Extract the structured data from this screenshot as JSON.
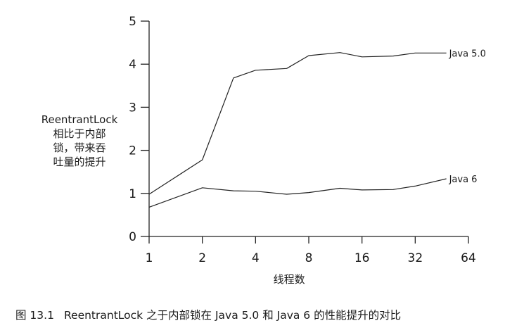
{
  "chart_data": {
    "type": "line",
    "title": "",
    "ylabel_lines": [
      "ReentrantLock",
      "相比于内部",
      "锁，带来吞",
      "吐量的提升"
    ],
    "xlabel": "线程数",
    "x_ticks": [
      "1",
      "2",
      "4",
      "8",
      "16",
      "32",
      "64"
    ],
    "x_scale": "log2",
    "x_range": [
      1,
      64
    ],
    "y_ticks": [
      "0",
      "1",
      "2",
      "3",
      "4",
      "5"
    ],
    "ylim": [
      0,
      5
    ],
    "grid": false,
    "series": [
      {
        "name": "Java 5.0",
        "x": [
          1,
          2,
          3,
          4,
          6,
          8,
          12,
          16,
          24,
          32,
          48
        ],
        "y": [
          0.98,
          1.78,
          3.68,
          3.86,
          3.9,
          4.2,
          4.27,
          4.17,
          4.19,
          4.26,
          4.26
        ]
      },
      {
        "name": "Java 6",
        "x": [
          1,
          2,
          3,
          4,
          6,
          8,
          12,
          16,
          24,
          32,
          48
        ],
        "y": [
          0.68,
          1.13,
          1.06,
          1.05,
          0.98,
          1.02,
          1.12,
          1.08,
          1.09,
          1.17,
          1.34
        ]
      }
    ]
  },
  "caption": {
    "number": "图 13.1",
    "text": "ReentrantLock 之于内部锁在 Java 5.0 和 Java 6 的性能提升的对比"
  }
}
